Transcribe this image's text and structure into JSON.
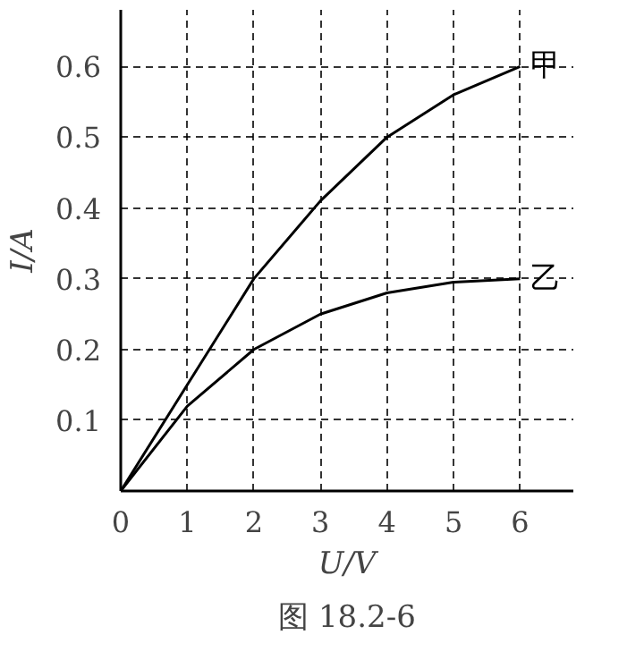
{
  "chart_data": {
    "type": "line",
    "xlabel": "U/V",
    "ylabel": "I/A",
    "annotations": [
      "图 18.2-6"
    ],
    "x": [
      0,
      1,
      2,
      3,
      4,
      5,
      6
    ],
    "series": [
      {
        "name": "甲",
        "color": "#000000",
        "values": [
          0,
          0.15,
          0.3,
          0.41,
          0.5,
          0.56,
          0.6
        ]
      },
      {
        "name": "乙",
        "color": "#000000",
        "values": [
          0,
          0.12,
          0.2,
          0.25,
          0.28,
          0.295,
          0.3
        ]
      }
    ],
    "xlim": [
      0,
      6.8
    ],
    "ylim": [
      0,
      0.68
    ],
    "xticks": [
      0,
      1,
      2,
      3,
      4,
      5,
      6
    ],
    "yticks": [
      0.1,
      0.2,
      0.3,
      0.4,
      0.5,
      0.6
    ],
    "grid": true,
    "line_style": "solid",
    "marker": "none",
    "legend": false
  }
}
